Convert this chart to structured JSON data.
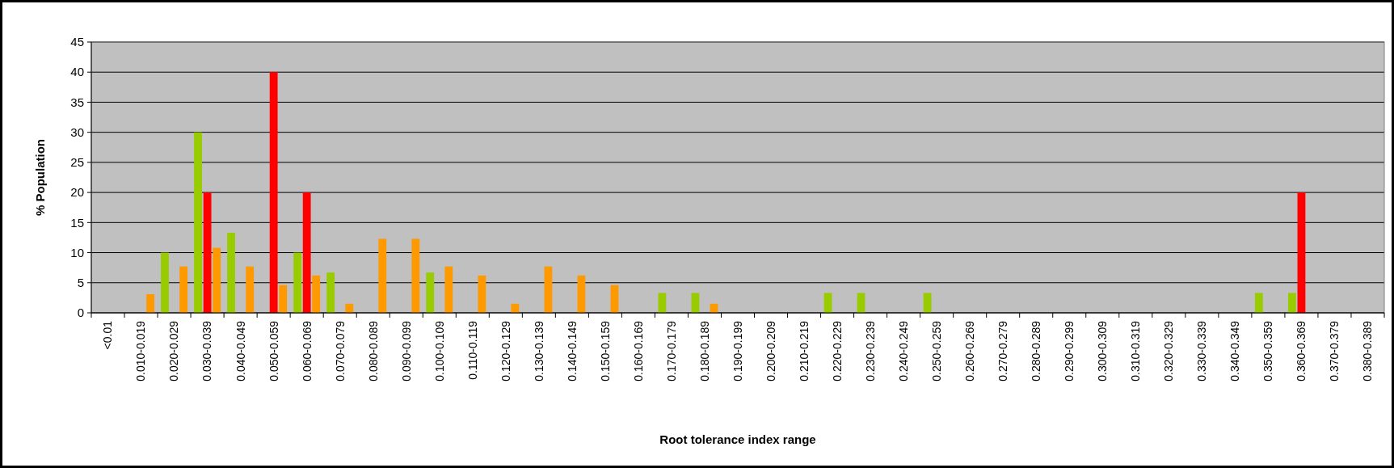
{
  "chart_data": {
    "type": "bar",
    "xlabel": "Root tolerance index range",
    "ylabel": "% Population",
    "categories": [
      "<0.01",
      "0.010-0.019",
      "0.020-0.029",
      "0.030-0.039",
      "0.040-0.049",
      "0.050-0.059",
      "0.060-0.069",
      "0.070-0.079",
      "0.080-0.089",
      "0.090-0.099",
      "0.100-0.109",
      "0.110-0.119",
      "0.120-0.129",
      "0.130-0.139",
      "0.140-0.149",
      "0.150-0.159",
      "0.160-0.169",
      "0.170-0.179",
      "0.180-0.189",
      "0.190-0.199",
      "0.200-0.209",
      "0.210-0.219",
      "0.220-0.229",
      "0.230-0.239",
      "0.240-0.249",
      "0.250-0.259",
      "0.260-0.269",
      "0.270-0.279",
      "0.280-0.289",
      "0.290-0.299",
      "0.300-0.309",
      "0.310-0.319",
      "0.320-0.329",
      "0.330-0.339",
      "0.340-0.349",
      "0.350-0.359",
      "0.360-0.369",
      "0.370-0.379",
      "0.380-0.389"
    ],
    "series": [
      {
        "color": "#99cc00",
        "values": [
          0,
          0,
          10,
          30,
          13.3,
          0,
          10,
          6.7,
          0,
          0,
          6.7,
          0,
          0,
          0,
          0,
          0,
          0,
          3.3,
          3.3,
          0,
          0,
          0,
          3.3,
          3.3,
          0,
          3.3,
          0,
          0,
          0,
          0,
          0,
          0,
          0,
          0,
          0,
          3.3,
          3.3,
          0,
          0
        ]
      },
      {
        "color": "#ff0000",
        "values": [
          0,
          0,
          0,
          20,
          0,
          40,
          20,
          0,
          0,
          0,
          0,
          0,
          0,
          0,
          0,
          0,
          0,
          0,
          0,
          0,
          0,
          0,
          0,
          0,
          0,
          0,
          0,
          0,
          0,
          0,
          0,
          0,
          0,
          0,
          0,
          0,
          20,
          0,
          0
        ]
      },
      {
        "color": "#ff9900",
        "values": [
          0,
          3.1,
          7.7,
          10.8,
          7.7,
          4.6,
          6.2,
          1.5,
          12.3,
          12.3,
          7.7,
          6.2,
          1.5,
          7.7,
          6.2,
          4.6,
          0,
          0,
          1.5,
          0,
          0,
          0,
          0,
          0,
          0,
          0,
          0,
          0,
          0,
          0,
          0,
          0,
          0,
          0,
          0,
          0,
          0,
          0,
          0
        ]
      }
    ],
    "ylim": [
      0,
      45
    ],
    "yticks": [
      0,
      5,
      10,
      15,
      20,
      25,
      30,
      35,
      40,
      45
    ],
    "grid": "y"
  }
}
